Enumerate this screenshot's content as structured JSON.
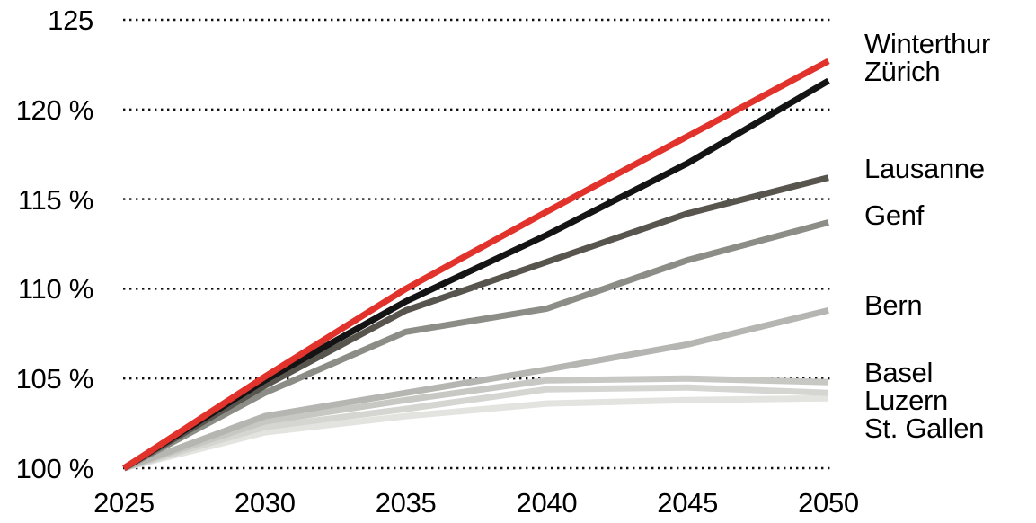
{
  "chart_data": {
    "type": "line",
    "title": "",
    "xlabel": "",
    "ylabel": "",
    "x": [
      2025,
      2030,
      2035,
      2040,
      2045,
      2050
    ],
    "x_tick_labels": [
      "2025",
      "2030",
      "2035",
      "2040",
      "2045",
      "2050"
    ],
    "y_ticks": [
      {
        "value": 100,
        "label": "100 %"
      },
      {
        "value": 105,
        "label": "105 %"
      },
      {
        "value": 110,
        "label": "110 %"
      },
      {
        "value": 115,
        "label": "115 %"
      },
      {
        "value": 120,
        "label": "120 %"
      },
      {
        "value": 125,
        "label": "125"
      }
    ],
    "ylim": [
      100,
      125
    ],
    "grid": "horizontal-dotted",
    "legend_position": "right",
    "grid_color": "#111111",
    "series": [
      {
        "name": "Winterthur",
        "color": "#e2322c",
        "values": [
          100,
          105.1,
          110.0,
          114.3,
          118.5,
          122.7
        ]
      },
      {
        "name": "Zürich",
        "color": "#141414",
        "values": [
          100,
          104.9,
          109.3,
          113.0,
          117.0,
          121.6
        ]
      },
      {
        "name": "Lausanne",
        "color": "#57554e",
        "values": [
          100,
          104.6,
          108.8,
          111.5,
          114.2,
          116.2
        ]
      },
      {
        "name": "Genf",
        "color": "#8d8d87",
        "values": [
          100,
          104.2,
          107.6,
          108.9,
          111.6,
          113.7
        ]
      },
      {
        "name": "Bern",
        "color": "#b5b5b1",
        "values": [
          100,
          102.9,
          104.2,
          105.5,
          106.9,
          108.8
        ]
      },
      {
        "name": "Basel",
        "color": "#c7c7c4",
        "values": [
          100,
          102.6,
          103.8,
          104.9,
          105.0,
          104.8
        ]
      },
      {
        "name": "Luzern",
        "color": "#d5d5d2",
        "values": [
          100,
          102.3,
          103.3,
          104.4,
          104.5,
          104.2
        ]
      },
      {
        "name": "St. Gallen",
        "color": "#e3e3e0",
        "values": [
          100,
          102.0,
          102.9,
          103.6,
          103.8,
          103.9
        ]
      }
    ]
  },
  "legend": {
    "groups": [
      {
        "lines": [
          "Winterthur",
          "Zürich"
        ]
      },
      {
        "lines": [
          "Lausanne"
        ]
      },
      {
        "lines": [
          "Genf"
        ]
      },
      {
        "lines": [
          "Bern"
        ]
      },
      {
        "lines": [
          "Basel",
          "Luzern",
          "St. Gallen"
        ]
      }
    ]
  }
}
